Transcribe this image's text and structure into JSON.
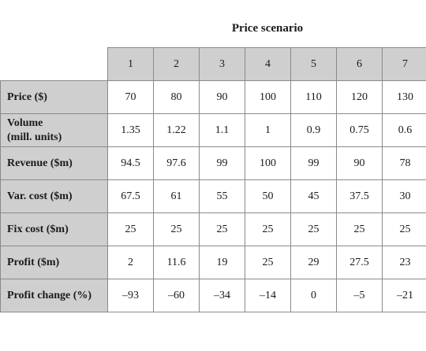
{
  "table": {
    "caption": "Price scenario",
    "scenarios": [
      "1",
      "2",
      "3",
      "4",
      "5",
      "6",
      "7"
    ],
    "rows": [
      {
        "label": [
          "Price ($)"
        ],
        "values": [
          "70",
          "80",
          "90",
          "100",
          "110",
          "120",
          "130"
        ]
      },
      {
        "label": [
          "Volume",
          "(mill. units)"
        ],
        "values": [
          "1.35",
          "1.22",
          "1.1",
          "1",
          "0.9",
          "0.75",
          "0.6"
        ]
      },
      {
        "label": [
          "Revenue ($m)"
        ],
        "values": [
          "94.5",
          "97.6",
          "99",
          "100",
          "99",
          "90",
          "78"
        ]
      },
      {
        "label": [
          "Var. cost ($m)"
        ],
        "values": [
          "67.5",
          "61",
          "55",
          "50",
          "45",
          "37.5",
          "30"
        ]
      },
      {
        "label": [
          "Fix cost ($m)"
        ],
        "values": [
          "25",
          "25",
          "25",
          "25",
          "25",
          "25",
          "25"
        ]
      },
      {
        "label": [
          "Profit ($m)"
        ],
        "values": [
          "2",
          "11.6",
          "19",
          "25",
          "29",
          "27.5",
          "23"
        ]
      },
      {
        "label": [
          "Profit change (%)"
        ],
        "values": [
          "–93",
          "–60",
          "–34",
          "–14",
          "0",
          "–5",
          "–21"
        ]
      }
    ]
  }
}
